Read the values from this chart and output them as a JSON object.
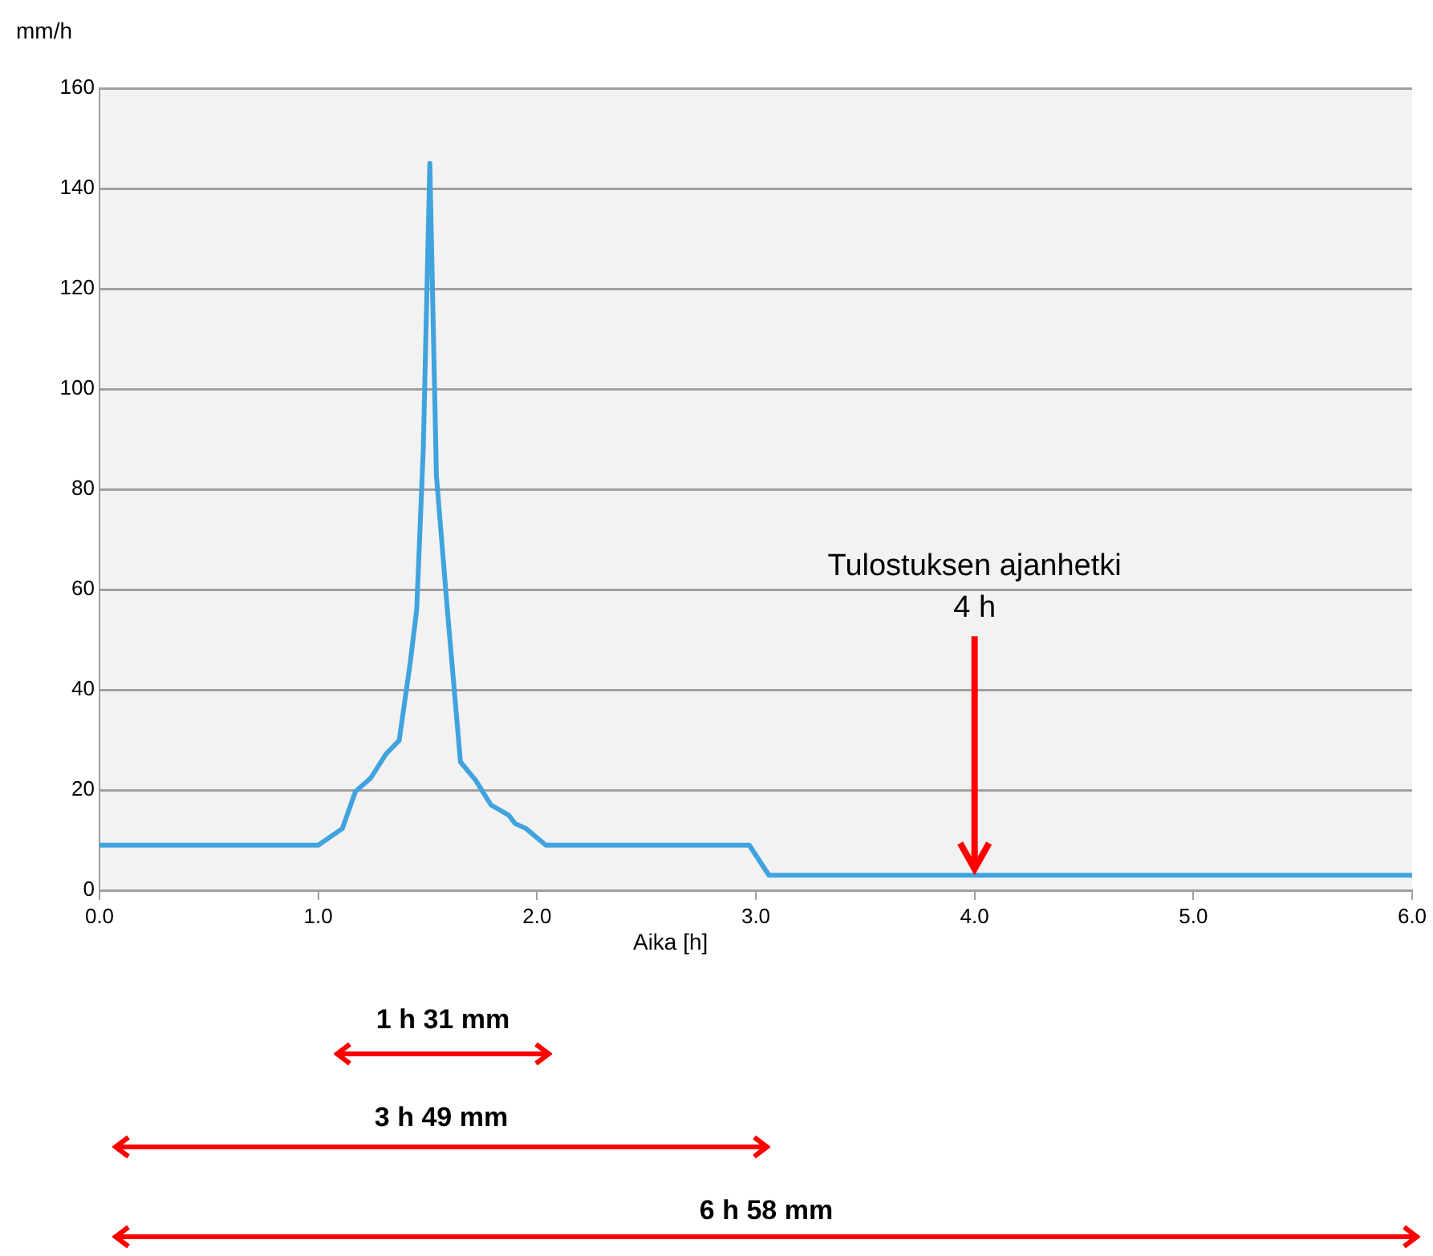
{
  "chart_data": {
    "type": "line",
    "ylabel": "mm/h",
    "xlabel": "Aika [h]",
    "x": [
      0,
      1.0,
      1.11,
      1.17,
      1.24,
      1.31,
      1.37,
      1.42,
      1.45,
      1.48,
      1.51,
      1.54,
      1.59,
      1.65,
      1.72,
      1.79,
      1.87,
      1.9,
      1.95,
      2.04,
      2.97,
      3.06,
      6
    ],
    "series": [
      {
        "color": "#41a3de",
        "values": [
          9,
          9,
          12.3,
          19.7,
          22.4,
          27.2,
          29.9,
          45.3,
          56,
          88,
          145,
          82.7,
          56,
          25.6,
          21.9,
          17,
          15,
          13.3,
          12.3,
          9,
          9,
          3,
          3
        ]
      }
    ],
    "xlim": [
      0,
      6
    ],
    "xticks": [
      {
        "value": 0,
        "label": "0.0"
      },
      {
        "value": 1,
        "label": "1.0"
      },
      {
        "value": 2,
        "label": "2.0"
      },
      {
        "value": 3,
        "label": "3.0"
      },
      {
        "value": 4,
        "label": "4.0"
      },
      {
        "value": 5,
        "label": "5.0"
      },
      {
        "value": 6,
        "label": "6.0"
      }
    ],
    "ylim": [
      0,
      160
    ],
    "yticks": [
      0,
      20,
      40,
      60,
      80,
      100,
      120,
      140,
      160
    ],
    "grid": "y",
    "legend": false,
    "marker": "none",
    "line_style": "solid",
    "annotations": [
      {
        "text": "Tulostuksen ajanhetki\n4 h",
        "x": 4,
        "y": 3
      },
      "1 h  31 mm",
      "3 h  49 mm",
      "6 h  58 mm"
    ]
  }
}
